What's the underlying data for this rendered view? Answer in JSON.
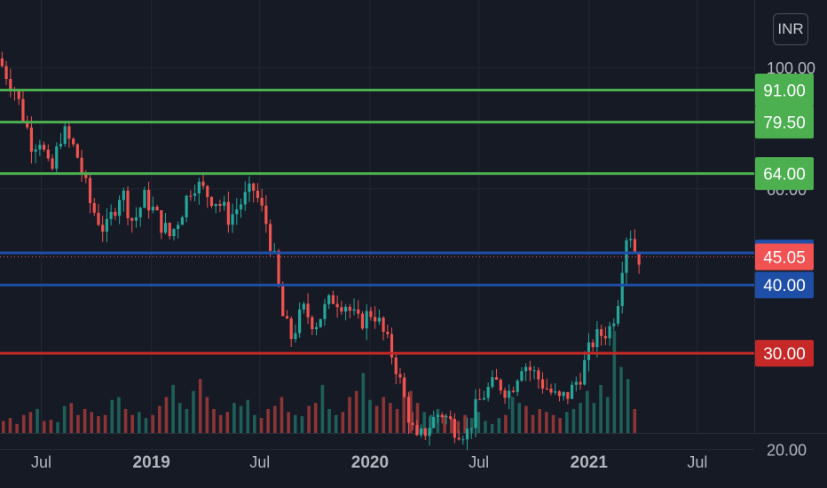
{
  "currency_button": "INR",
  "colors": {
    "background": "#161a25",
    "grid": "#232732",
    "axis_text": "#b2b5be",
    "up": "#26a69a",
    "down": "#ef5350",
    "volume_up": "#1e5f59",
    "volume_down": "#8c3537",
    "support_green": "#4caf50",
    "level_blue": "#1e4ea6",
    "level_red": "#c62828",
    "last_price": "#f05352"
  },
  "chart_data": {
    "type": "candlestick",
    "x_ticks": [
      "Jul",
      "2019",
      "Jul",
      "2020",
      "Jul",
      "2021",
      "Jul"
    ],
    "x_tick_dates": [
      "2018-07-01",
      "2019-01-01",
      "2019-07-01",
      "2020-01-01",
      "2020-07-01",
      "2021-01-01",
      "2021-07-01"
    ],
    "x_range": [
      "2018-04-23",
      "2021-10-04"
    ],
    "y_scale": "log",
    "y_ticks": [
      {
        "value": 100,
        "label": "100.00"
      },
      {
        "value": 60,
        "label": "60.00"
      },
      {
        "value": 20,
        "label": "20.00"
      }
    ],
    "y_range": [
      17,
      133
    ],
    "horizontal_levels": [
      {
        "value": 91.0,
        "label": "91.00",
        "color": "support_green"
      },
      {
        "value": 79.5,
        "label": "79.50",
        "color": "support_green"
      },
      {
        "value": 64.0,
        "label": "64.00",
        "color": "support_green"
      },
      {
        "value": 45.8,
        "label": "45.80",
        "color": "level_blue"
      },
      {
        "value": 40.0,
        "label": "40.00",
        "color": "level_blue"
      },
      {
        "value": 30.0,
        "label": "30.00",
        "color": "level_red"
      }
    ],
    "last_price": {
      "value": 45.05,
      "label": "45.05",
      "color": "last_price"
    },
    "price_path": [
      [
        "2018-04-23",
        104
      ],
      [
        "2018-05-20",
        92
      ],
      [
        "2018-06-20",
        72
      ],
      [
        "2018-07-01",
        75
      ],
      [
        "2018-07-20",
        63
      ],
      [
        "2018-08-08",
        77
      ],
      [
        "2018-09-01",
        70
      ],
      [
        "2018-09-25",
        56
      ],
      [
        "2018-10-20",
        50
      ],
      [
        "2018-11-15",
        60
      ],
      [
        "2018-12-05",
        52
      ],
      [
        "2018-12-25",
        58
      ],
      [
        "2019-01-15",
        53
      ],
      [
        "2019-02-05",
        49
      ],
      [
        "2019-02-25",
        55
      ],
      [
        "2019-03-15",
        62
      ],
      [
        "2019-04-05",
        59
      ],
      [
        "2019-04-25",
        57
      ],
      [
        "2019-05-15",
        53
      ],
      [
        "2019-06-05",
        57
      ],
      [
        "2019-06-25",
        60
      ],
      [
        "2019-07-15",
        52
      ],
      [
        "2019-07-28",
        45
      ],
      [
        "2019-08-12",
        35
      ],
      [
        "2019-08-25",
        32
      ],
      [
        "2019-09-15",
        36
      ],
      [
        "2019-10-05",
        34
      ],
      [
        "2019-10-20",
        36
      ],
      [
        "2019-11-05",
        38
      ],
      [
        "2019-11-25",
        37
      ],
      [
        "2019-12-15",
        34
      ],
      [
        "2020-01-10",
        36
      ],
      [
        "2020-01-25",
        33
      ],
      [
        "2020-02-15",
        29
      ],
      [
        "2020-03-05",
        24
      ],
      [
        "2020-03-22",
        20.5
      ],
      [
        "2020-04-10",
        22
      ],
      [
        "2020-05-01",
        23.5
      ],
      [
        "2020-05-25",
        22
      ],
      [
        "2020-06-15",
        21.5
      ],
      [
        "2020-07-01",
        24
      ],
      [
        "2020-07-15",
        25.5
      ],
      [
        "2020-08-05",
        26.5
      ],
      [
        "2020-08-25",
        25.5
      ],
      [
        "2020-09-15",
        29
      ],
      [
        "2020-10-05",
        27.5
      ],
      [
        "2020-10-25",
        26
      ],
      [
        "2020-11-15",
        24.5
      ],
      [
        "2020-12-05",
        25.5
      ],
      [
        "2020-12-25",
        28
      ],
      [
        "2021-01-10",
        31.5
      ],
      [
        "2021-01-25",
        32.5
      ],
      [
        "2021-02-10",
        33.5
      ],
      [
        "2021-02-22",
        38
      ],
      [
        "2021-03-02",
        45
      ],
      [
        "2021-03-10",
        51
      ],
      [
        "2021-03-18",
        49
      ],
      [
        "2021-03-24",
        45.05
      ]
    ],
    "volume_relative": [
      0.2,
      0.25,
      0.15,
      0.3,
      0.35,
      0.4,
      0.2,
      0.22,
      0.18,
      0.45,
      0.5,
      0.3,
      0.4,
      0.35,
      0.28,
      0.3,
      0.55,
      0.6,
      0.4,
      0.3,
      0.35,
      0.25,
      0.3,
      0.45,
      0.6,
      0.8,
      0.5,
      0.4,
      0.7,
      0.9,
      0.6,
      0.4,
      0.3,
      0.35,
      0.5,
      0.45,
      0.55,
      0.3,
      0.25,
      0.4,
      0.45,
      0.6,
      0.35,
      0.3,
      0.28,
      0.45,
      0.5,
      0.8,
      0.4,
      0.3,
      0.35,
      0.6,
      0.7,
      1.0,
      0.55,
      0.45,
      0.6,
      0.5,
      0.4,
      0.9,
      0.7,
      0.5,
      0.35,
      0.3,
      0.4,
      0.3,
      0.25,
      0.2,
      0.3,
      0.25,
      0.35,
      0.2,
      0.15,
      0.25,
      0.3,
      0.6,
      0.5,
      0.45,
      0.3,
      0.4,
      0.35,
      0.3,
      0.25,
      0.35,
      0.4,
      0.5,
      0.7,
      0.5,
      0.8,
      0.6,
      1.7,
      1.1,
      0.9,
      0.4
    ]
  }
}
